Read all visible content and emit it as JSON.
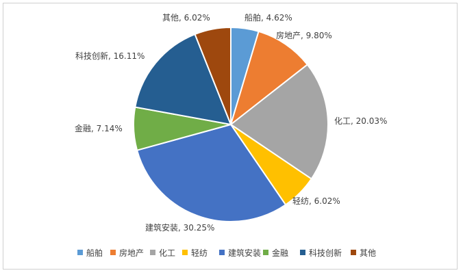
{
  "chart_data": {
    "type": "pie",
    "title": "",
    "slices": [
      {
        "label": "船舶",
        "value": 4.62,
        "display": "船舶, 4.62%",
        "color": "#5B9BD5"
      },
      {
        "label": "房地产",
        "value": 9.8,
        "display": "房地产, 9.80%",
        "color": "#ED7D31"
      },
      {
        "label": "化工",
        "value": 20.03,
        "display": "化工, 20.03%",
        "color": "#A5A5A5"
      },
      {
        "label": "轻纺",
        "value": 6.02,
        "display": "轻纺, 6.02%",
        "color": "#FFC000"
      },
      {
        "label": "建筑安装",
        "value": 30.25,
        "display": "建筑安装, 30.25%",
        "color": "#4472C4"
      },
      {
        "label": "金融",
        "value": 7.14,
        "display": "金融, 7.14%",
        "color": "#70AD47"
      },
      {
        "label": "科技创新",
        "value": 16.11,
        "display": "科技创新, 16.11%",
        "color": "#255E91"
      },
      {
        "label": "其他",
        "value": 6.02,
        "display": "其他, 6.02%",
        "color": "#9E480E"
      }
    ],
    "legend_position": "bottom",
    "start_angle": "12 o'clock",
    "direction": "clockwise"
  }
}
